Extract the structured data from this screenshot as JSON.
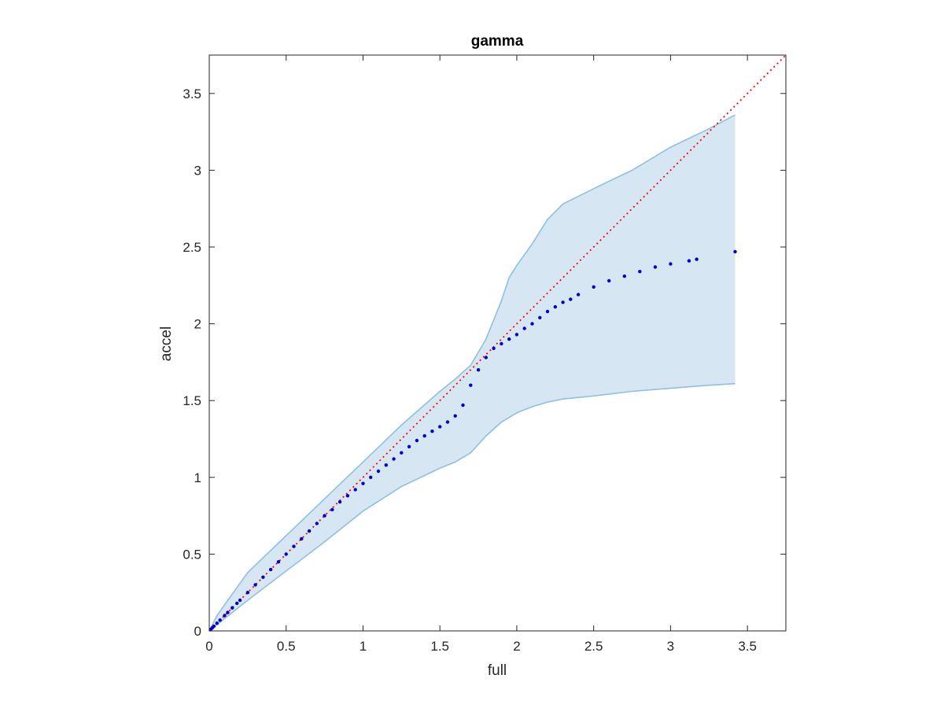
{
  "chart_data": {
    "type": "scatter",
    "title": "gamma",
    "xlabel": "full",
    "ylabel": "accel",
    "xlim": [
      0,
      3.75
    ],
    "ylim": [
      0,
      3.75
    ],
    "xticks": [
      0,
      0.5,
      1,
      1.5,
      2,
      2.5,
      3,
      3.5
    ],
    "yticks": [
      0,
      0.5,
      1,
      1.5,
      2,
      2.5,
      3,
      3.5
    ],
    "xtick_labels": [
      "0",
      "0.5",
      "1",
      "1.5",
      "2",
      "2.5",
      "3",
      "3.5"
    ],
    "ytick_labels": [
      "0",
      "0.5",
      "1",
      "1.5",
      "2",
      "2.5",
      "3",
      "3.5"
    ],
    "grid": false,
    "colors": {
      "points": "#0000cc",
      "reference_line": "#ff0000",
      "band_fill": "#d6e7f3",
      "band_edge": "#8fc0dd",
      "axes": "#262626"
    },
    "band": {
      "x": [
        0,
        0.05,
        0.1,
        0.25,
        0.5,
        0.75,
        1.0,
        1.25,
        1.5,
        1.6,
        1.7,
        1.8,
        1.9,
        1.95,
        2.0,
        2.1,
        2.2,
        2.3,
        2.5,
        2.75,
        3.0,
        3.25,
        3.42
      ],
      "upper": [
        0,
        0.1,
        0.17,
        0.38,
        0.62,
        0.86,
        1.1,
        1.34,
        1.56,
        1.64,
        1.73,
        1.9,
        2.15,
        2.3,
        2.38,
        2.52,
        2.68,
        2.78,
        2.88,
        3.0,
        3.15,
        3.27,
        3.36
      ],
      "lower": [
        0,
        0.04,
        0.08,
        0.2,
        0.39,
        0.58,
        0.78,
        0.94,
        1.06,
        1.1,
        1.16,
        1.27,
        1.36,
        1.39,
        1.42,
        1.46,
        1.49,
        1.51,
        1.53,
        1.56,
        1.58,
        1.6,
        1.61
      ]
    },
    "series": [
      {
        "x": [
          0.01,
          0.02,
          0.03,
          0.05,
          0.07,
          0.1,
          0.12,
          0.15,
          0.18,
          0.2,
          0.25,
          0.3,
          0.35,
          0.4,
          0.45,
          0.5,
          0.55,
          0.6,
          0.65,
          0.7,
          0.75,
          0.8,
          0.85,
          0.9,
          0.95,
          1.0,
          1.05,
          1.1,
          1.15,
          1.2,
          1.25,
          1.3,
          1.35,
          1.4,
          1.45,
          1.5,
          1.55,
          1.6,
          1.65,
          1.7,
          1.75,
          1.8,
          1.85,
          1.9,
          1.95,
          2.0,
          2.05,
          2.1,
          2.15,
          2.2,
          2.25,
          2.3,
          2.35,
          2.4,
          2.5,
          2.6,
          2.7,
          2.8,
          2.9,
          3.0,
          3.12,
          3.17,
          3.42
        ],
        "y": [
          0.01,
          0.02,
          0.03,
          0.05,
          0.07,
          0.1,
          0.12,
          0.15,
          0.18,
          0.2,
          0.25,
          0.3,
          0.35,
          0.4,
          0.45,
          0.5,
          0.55,
          0.6,
          0.65,
          0.7,
          0.75,
          0.79,
          0.84,
          0.88,
          0.92,
          0.96,
          1.0,
          1.04,
          1.08,
          1.12,
          1.16,
          1.2,
          1.24,
          1.27,
          1.3,
          1.33,
          1.36,
          1.4,
          1.47,
          1.6,
          1.7,
          1.78,
          1.84,
          1.87,
          1.9,
          1.93,
          1.97,
          2.0,
          2.04,
          2.08,
          2.11,
          2.14,
          2.16,
          2.19,
          2.24,
          2.28,
          2.31,
          2.34,
          2.37,
          2.39,
          2.41,
          2.42,
          2.47
        ]
      }
    ],
    "reference_line": {
      "x": [
        0,
        3.75
      ],
      "y": [
        0,
        3.75
      ]
    }
  }
}
